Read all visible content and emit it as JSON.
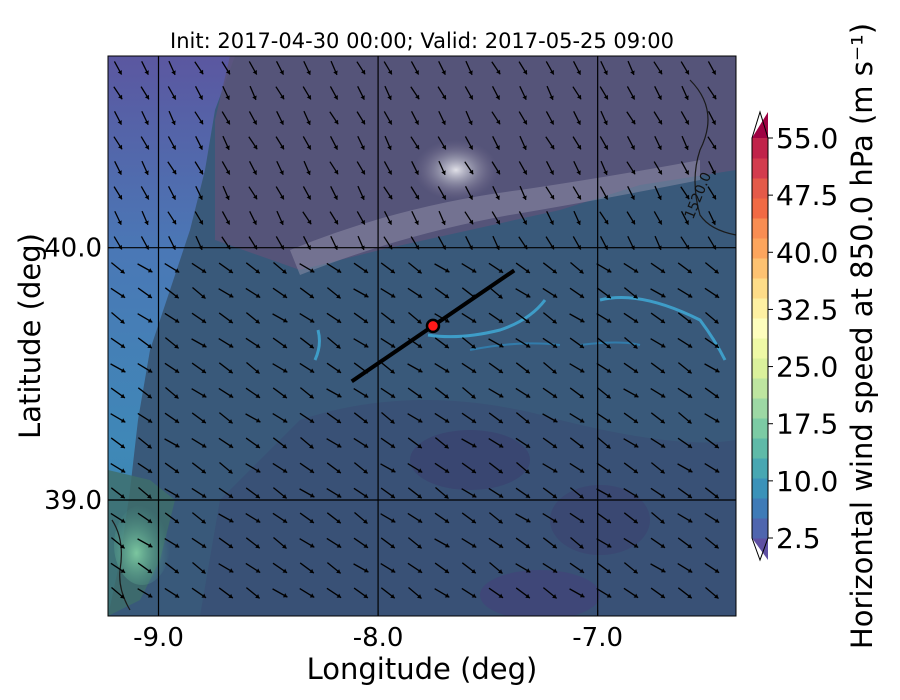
{
  "chart_data": {
    "type": "heatmap",
    "title": "Init: 2017-04-30 00:00; Valid: 2017-05-25 09:00",
    "xlabel": "Longitude (deg)",
    "ylabel": "Latitude (deg)",
    "xlim": [
      -9.23,
      -6.37
    ],
    "ylim": [
      38.54,
      40.76
    ],
    "xticks": [
      {
        "value": -9.0,
        "label": "-9.0"
      },
      {
        "value": -8.0,
        "label": "-8.0"
      },
      {
        "value": -7.0,
        "label": "-7.0"
      }
    ],
    "yticks": [
      {
        "value": 40.0,
        "label": "40.0"
      },
      {
        "value": 39.0,
        "label": "39.0"
      }
    ],
    "grid_lon": [
      -9.0,
      -8.0,
      -7.0
    ],
    "grid_lat": [
      40.0,
      39.0
    ],
    "colorbar": {
      "label": "Horizontal wind speed at 850.0 hPa (m s⁻¹)",
      "min": 2.5,
      "max": 55.0,
      "step": 2.5,
      "ticks": [
        {
          "value": 2.5,
          "label": "2.5"
        },
        {
          "value": 10.0,
          "label": "10.0"
        },
        {
          "value": 17.5,
          "label": "17.5"
        },
        {
          "value": 25.0,
          "label": "25.0"
        },
        {
          "value": 32.5,
          "label": "32.5"
        },
        {
          "value": 40.0,
          "label": "40.0"
        },
        {
          "value": 47.5,
          "label": "47.5"
        },
        {
          "value": 55.0,
          "label": "55.0"
        }
      ],
      "colors": [
        "#5e4fa2",
        "#4f65ae",
        "#3f7bb7",
        "#3b92b9",
        "#48a7b2",
        "#5fbaa8",
        "#7ccba4",
        "#9dd8a4",
        "#bee5a0",
        "#dbf19c",
        "#eff9a6",
        "#fefebd",
        "#fef0a2",
        "#fedc88",
        "#fdc272",
        "#fca55d",
        "#f88d52",
        "#f16a44",
        "#e45a49",
        "#d33c4e",
        "#c0244a",
        "#9e0142"
      ]
    },
    "contour_label": "1520.0",
    "cross_section": {
      "start": [
        -8.12,
        39.47
      ],
      "end": [
        -7.38,
        39.91
      ],
      "center": [
        -7.75,
        39.69
      ]
    }
  }
}
